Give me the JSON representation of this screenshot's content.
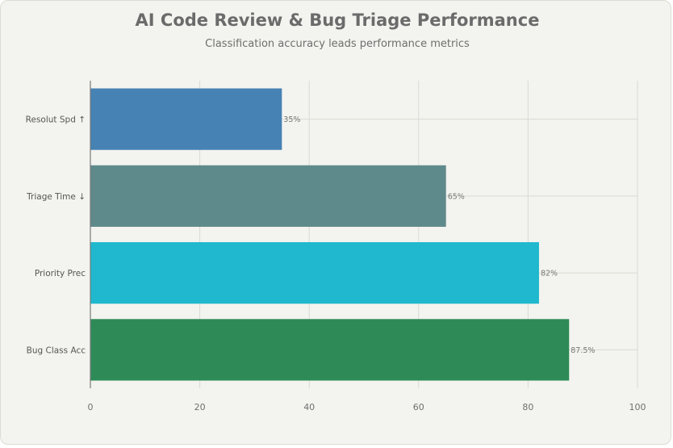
{
  "chart_data": {
    "type": "bar",
    "orientation": "horizontal",
    "title": "AI Code Review & Bug Triage Performance",
    "subtitle": "Classification accuracy leads performance metrics",
    "xlabel": "",
    "ylabel": "",
    "xlim": [
      0,
      100
    ],
    "x_ticks": [
      0,
      20,
      40,
      60,
      80,
      100
    ],
    "grid": true,
    "categories": [
      "Resolut Spd ↑",
      "Triage Time ↓",
      "Priority Prec",
      "Bug Class Acc"
    ],
    "values": [
      35,
      65,
      82,
      87.5
    ],
    "value_labels": [
      "35%",
      "65%",
      "82%",
      "87.5%"
    ],
    "colors": [
      "#4682b4",
      "#5f8a8b",
      "#20b8ce",
      "#2e8b57"
    ]
  }
}
